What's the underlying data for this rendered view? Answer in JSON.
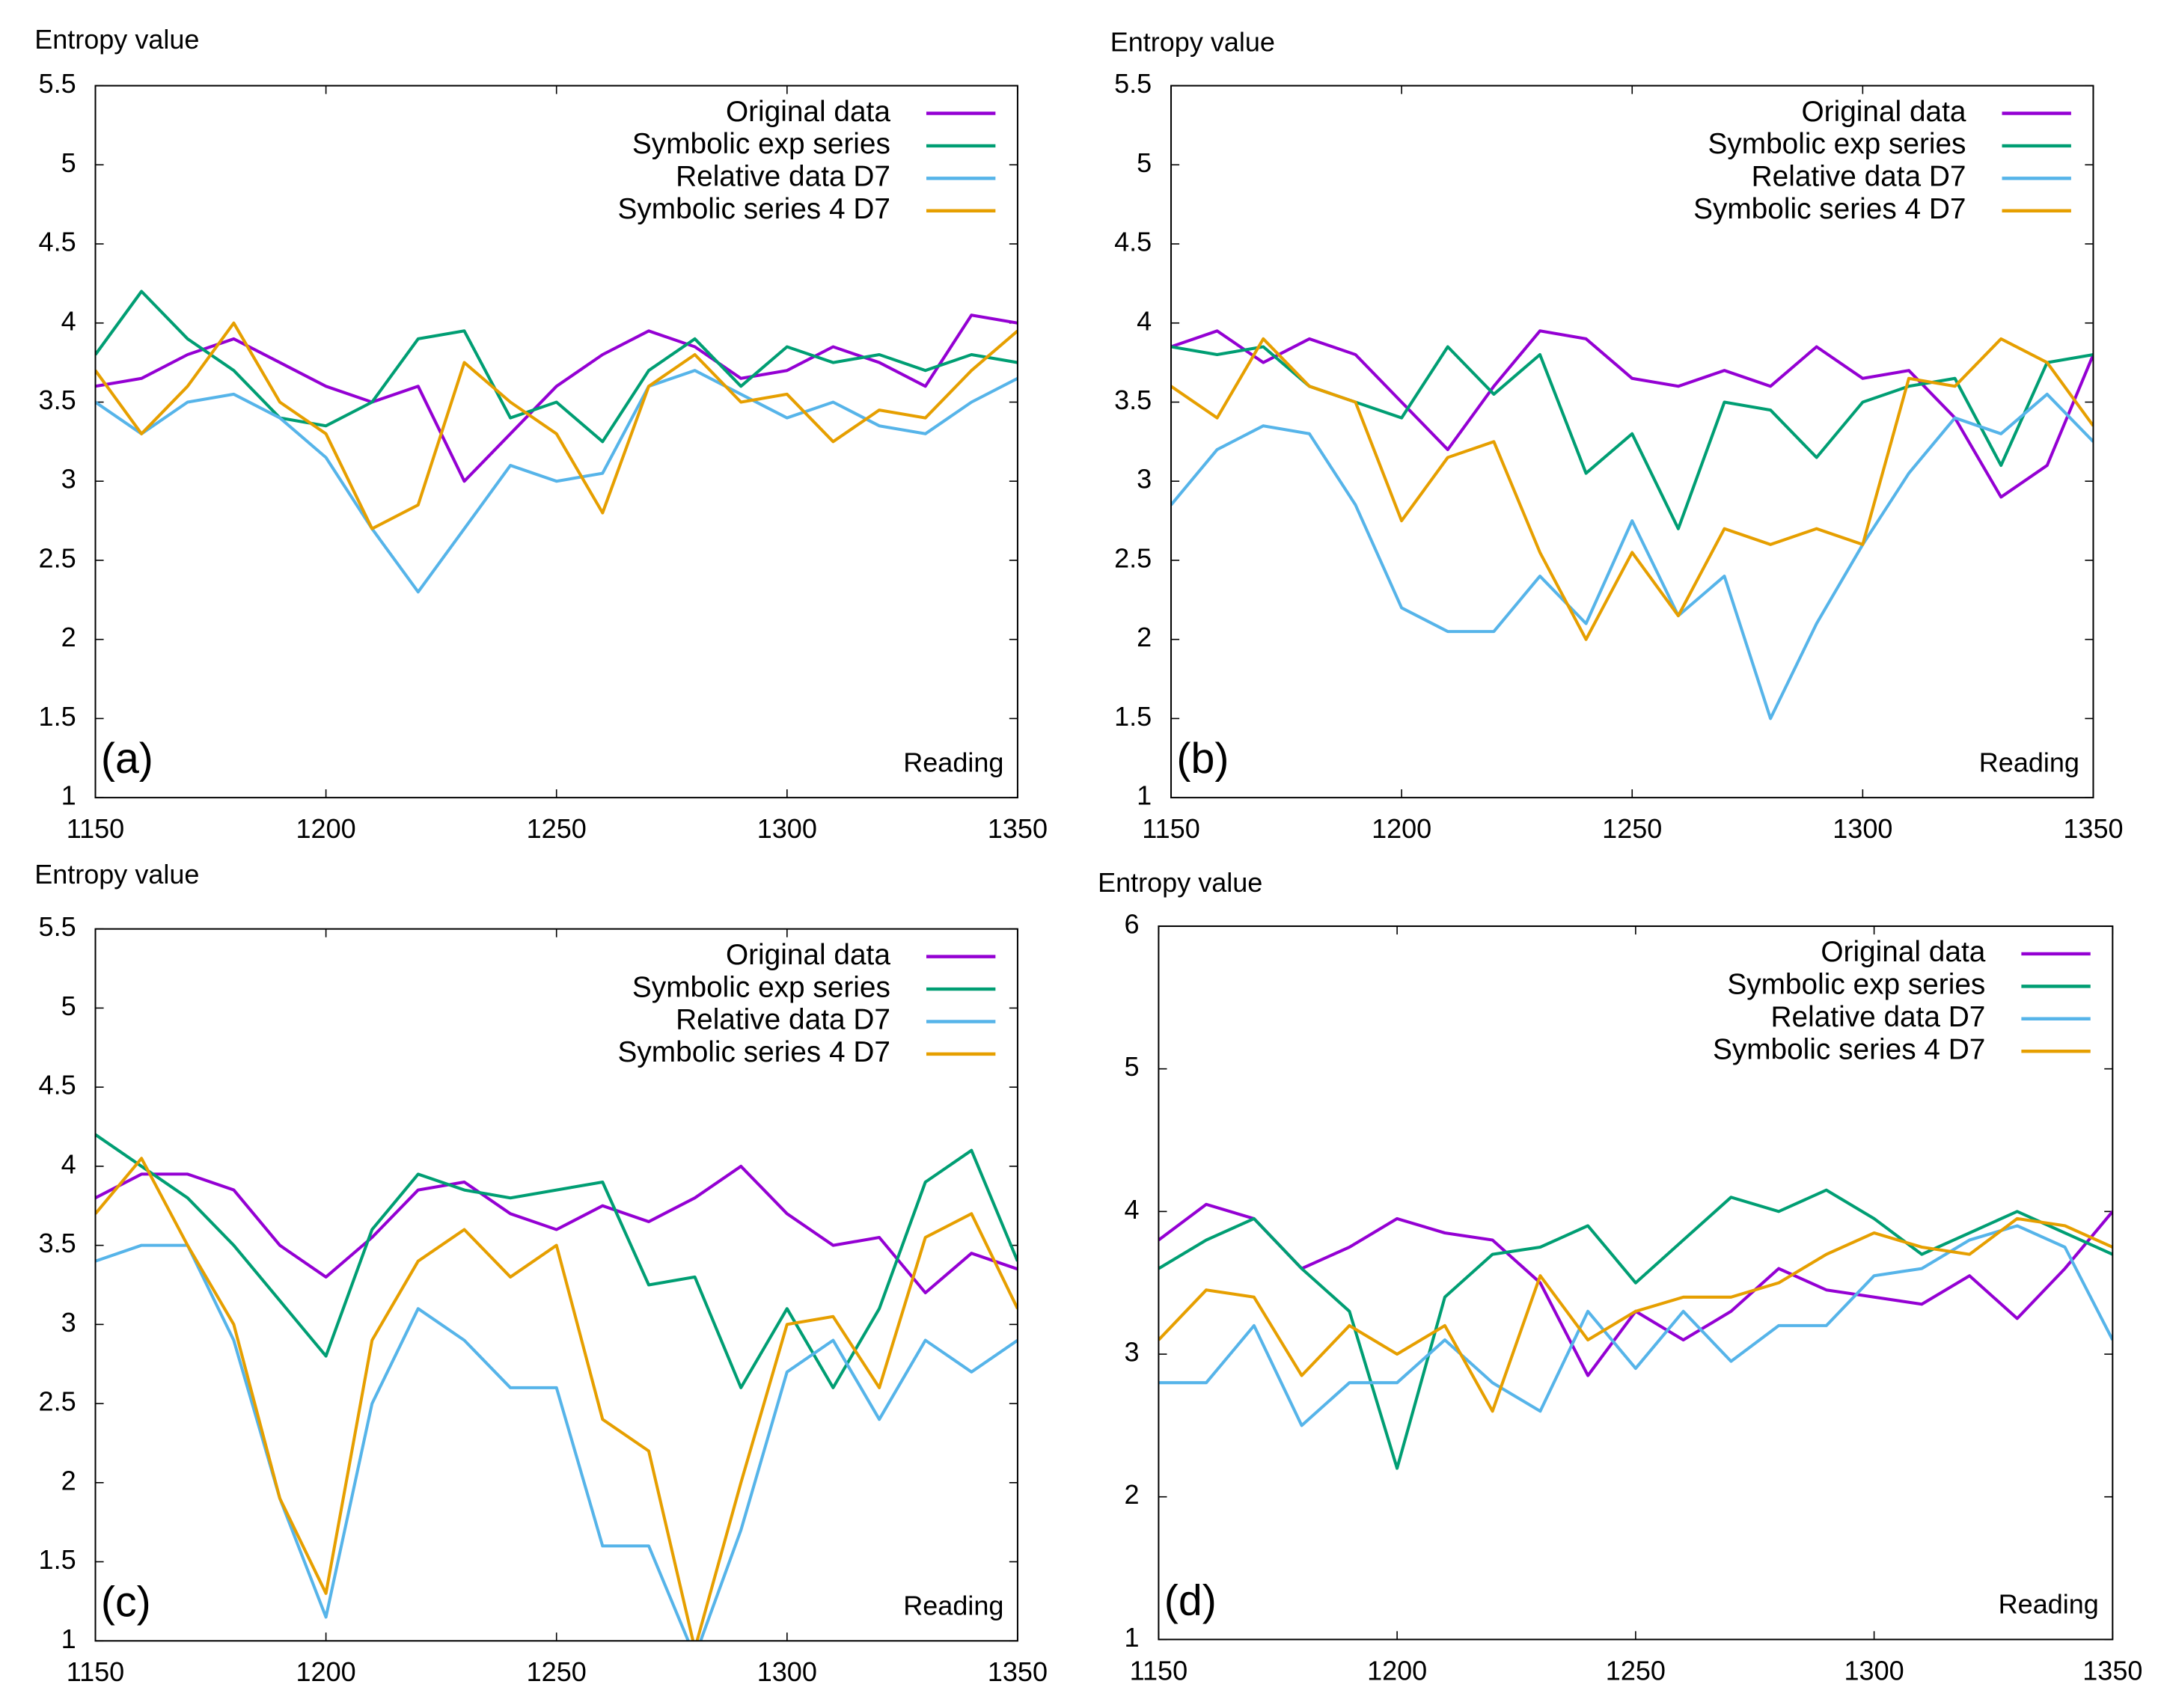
{
  "chart_data": [
    {
      "type": "line",
      "panel_label": "(a)",
      "ylabel": "Entropy value",
      "xlabel": "Reading",
      "xlim": [
        1150,
        1350
      ],
      "ylim": [
        1,
        5.5
      ],
      "xticks": [
        1150,
        1200,
        1250,
        1300,
        1350
      ],
      "yticks": [
        1,
        1.5,
        2,
        2.5,
        3,
        3.5,
        4,
        4.5,
        5,
        5.5
      ],
      "ytick_labels": [
        "1",
        "1.5",
        "2",
        "2.5",
        "3",
        "3.5",
        "4",
        "4.5",
        "5",
        "5.5"
      ],
      "legend_position": "top-right",
      "x": [
        1150,
        1160,
        1170,
        1180,
        1190,
        1200,
        1210,
        1220,
        1230,
        1240,
        1250,
        1260,
        1270,
        1280,
        1290,
        1300,
        1310,
        1320,
        1330,
        1340,
        1350
      ],
      "series": [
        {
          "name": "Original data",
          "color": "#9400d3",
          "values": [
            3.6,
            3.65,
            3.8,
            3.9,
            3.75,
            3.6,
            3.5,
            3.6,
            3.0,
            3.3,
            3.6,
            3.8,
            3.95,
            3.85,
            3.65,
            3.7,
            3.85,
            3.75,
            3.6,
            4.05,
            4.0
          ]
        },
        {
          "name": "Symbolic exp series",
          "color": "#009e73",
          "values": [
            3.8,
            4.2,
            3.9,
            3.7,
            3.4,
            3.35,
            3.5,
            3.9,
            3.95,
            3.4,
            3.5,
            3.25,
            3.7,
            3.9,
            3.6,
            3.85,
            3.75,
            3.8,
            3.7,
            3.8,
            3.75
          ]
        },
        {
          "name": "Relative data D7",
          "color": "#56b4e9",
          "values": [
            3.5,
            3.3,
            3.5,
            3.55,
            3.4,
            3.15,
            2.7,
            2.3,
            2.7,
            3.1,
            3.0,
            3.05,
            3.6,
            3.7,
            3.55,
            3.4,
            3.5,
            3.35,
            3.3,
            3.5,
            3.65
          ]
        },
        {
          "name": "Symbolic series 4 D7",
          "color": "#e69f00",
          "values": [
            3.7,
            3.3,
            3.6,
            4.0,
            3.5,
            3.3,
            2.7,
            2.85,
            3.75,
            3.5,
            3.3,
            2.8,
            3.6,
            3.8,
            3.5,
            3.55,
            3.25,
            3.45,
            3.4,
            3.7,
            3.95
          ]
        }
      ]
    },
    {
      "type": "line",
      "panel_label": "(b)",
      "ylabel": "Entropy value",
      "xlabel": "Reading",
      "xlim": [
        1150,
        1350
      ],
      "ylim": [
        1,
        5.5
      ],
      "xticks": [
        1150,
        1200,
        1250,
        1300,
        1350
      ],
      "yticks": [
        1,
        1.5,
        2,
        2.5,
        3,
        3.5,
        4,
        4.5,
        5,
        5.5
      ],
      "ytick_labels": [
        "1",
        "1.5",
        "2",
        "2.5",
        "3",
        "3.5",
        "4",
        "4.5",
        "5",
        "5.5"
      ],
      "legend_position": "top-right",
      "x": [
        1150,
        1160,
        1170,
        1180,
        1190,
        1200,
        1210,
        1220,
        1230,
        1240,
        1250,
        1260,
        1270,
        1280,
        1290,
        1300,
        1310,
        1320,
        1330,
        1340,
        1350
      ],
      "series": [
        {
          "name": "Original data",
          "color": "#9400d3",
          "values": [
            3.85,
            3.95,
            3.75,
            3.9,
            3.8,
            3.5,
            3.2,
            3.6,
            3.95,
            3.9,
            3.65,
            3.6,
            3.7,
            3.6,
            3.85,
            3.65,
            3.7,
            3.4,
            2.9,
            3.1,
            3.8
          ]
        },
        {
          "name": "Symbolic exp series",
          "color": "#009e73",
          "values": [
            3.85,
            3.8,
            3.85,
            3.6,
            3.5,
            3.4,
            3.85,
            3.55,
            3.8,
            3.05,
            3.3,
            2.7,
            3.5,
            3.45,
            3.15,
            3.5,
            3.6,
            3.65,
            3.1,
            3.75,
            3.8
          ]
        },
        {
          "name": "Relative data D7",
          "color": "#56b4e9",
          "values": [
            2.85,
            3.2,
            3.35,
            3.3,
            2.85,
            2.2,
            2.05,
            2.05,
            2.4,
            2.1,
            2.75,
            2.15,
            2.4,
            1.5,
            2.1,
            2.6,
            3.05,
            3.4,
            3.3,
            3.55,
            3.25
          ]
        },
        {
          "name": "Symbolic series 4 D7",
          "color": "#e69f00",
          "values": [
            3.6,
            3.4,
            3.9,
            3.6,
            3.5,
            2.75,
            3.15,
            3.25,
            2.55,
            2.0,
            2.55,
            2.15,
            2.7,
            2.6,
            2.7,
            2.6,
            3.65,
            3.6,
            3.9,
            3.75,
            3.35
          ]
        }
      ]
    },
    {
      "type": "line",
      "panel_label": "(c)",
      "ylabel": "Entropy value",
      "xlabel": "Reading",
      "xlim": [
        1150,
        1350
      ],
      "ylim": [
        1,
        5.5
      ],
      "xticks": [
        1150,
        1200,
        1250,
        1300,
        1350
      ],
      "yticks": [
        1,
        1.5,
        2,
        2.5,
        3,
        3.5,
        4,
        4.5,
        5,
        5.5
      ],
      "ytick_labels": [
        "1",
        "1.5",
        "2",
        "2.5",
        "3",
        "3.5",
        "4",
        "4.5",
        "5",
        "5.5"
      ],
      "legend_position": "top-right",
      "x": [
        1150,
        1160,
        1170,
        1180,
        1190,
        1200,
        1210,
        1220,
        1230,
        1240,
        1250,
        1260,
        1270,
        1280,
        1290,
        1300,
        1310,
        1320,
        1330,
        1340,
        1350
      ],
      "series": [
        {
          "name": "Original data",
          "color": "#9400d3",
          "values": [
            3.8,
            3.95,
            3.95,
            3.85,
            3.5,
            3.3,
            3.55,
            3.85,
            3.9,
            3.7,
            3.6,
            3.75,
            3.65,
            3.8,
            4.0,
            3.7,
            3.5,
            3.55,
            3.2,
            3.45,
            3.35
          ]
        },
        {
          "name": "Symbolic exp series",
          "color": "#009e73",
          "values": [
            4.2,
            4.0,
            3.8,
            3.5,
            3.15,
            2.8,
            3.6,
            3.95,
            3.85,
            3.8,
            3.85,
            3.9,
            3.25,
            3.3,
            2.6,
            3.1,
            2.6,
            3.1,
            3.9,
            4.1,
            3.4
          ]
        },
        {
          "name": "Relative data D7",
          "color": "#56b4e9",
          "values": [
            3.4,
            3.5,
            3.5,
            2.9,
            1.9,
            1.15,
            2.5,
            3.1,
            2.9,
            2.6,
            2.6,
            1.6,
            1.6,
            0.9,
            1.7,
            2.7,
            2.9,
            2.4,
            2.9,
            2.7,
            2.9
          ]
        },
        {
          "name": "Symbolic series 4 D7",
          "color": "#e69f00",
          "values": [
            3.7,
            4.05,
            3.5,
            3.0,
            1.9,
            1.3,
            2.9,
            3.4,
            3.6,
            3.3,
            3.5,
            2.4,
            2.2,
            0.95,
            2.0,
            3.0,
            3.05,
            2.6,
            3.55,
            3.7,
            3.1
          ]
        }
      ]
    },
    {
      "type": "line",
      "panel_label": "(d)",
      "ylabel": "Entropy value",
      "xlabel": "Reading",
      "xlim": [
        1150,
        1350
      ],
      "ylim": [
        1,
        6
      ],
      "xticks": [
        1150,
        1200,
        1250,
        1300,
        1350
      ],
      "yticks": [
        1,
        2,
        3,
        4,
        5,
        6
      ],
      "ytick_labels": [
        "1",
        "2",
        "3",
        "4",
        "5",
        "6"
      ],
      "legend_position": "top-right",
      "x": [
        1150,
        1160,
        1170,
        1180,
        1190,
        1200,
        1210,
        1220,
        1230,
        1240,
        1250,
        1260,
        1270,
        1280,
        1290,
        1300,
        1310,
        1320,
        1330,
        1340,
        1350
      ],
      "series": [
        {
          "name": "Original data",
          "color": "#9400d3",
          "values": [
            3.8,
            4.05,
            3.95,
            3.6,
            3.75,
            3.95,
            3.85,
            3.8,
            3.5,
            2.85,
            3.3,
            3.1,
            3.3,
            3.6,
            3.45,
            3.4,
            3.35,
            3.55,
            3.25,
            3.6,
            4.0
          ]
        },
        {
          "name": "Symbolic exp series",
          "color": "#009e73",
          "values": [
            3.6,
            3.8,
            3.95,
            3.6,
            3.3,
            2.2,
            3.4,
            3.7,
            3.75,
            3.9,
            3.5,
            3.8,
            4.1,
            4.0,
            4.15,
            3.95,
            3.7,
            3.85,
            4.0,
            3.85,
            3.7
          ]
        },
        {
          "name": "Relative data D7",
          "color": "#56b4e9",
          "values": [
            2.8,
            2.8,
            3.2,
            2.5,
            2.8,
            2.8,
            3.1,
            2.8,
            2.6,
            3.3,
            2.9,
            3.3,
            2.95,
            3.2,
            3.2,
            3.55,
            3.6,
            3.8,
            3.9,
            3.75,
            3.1
          ]
        },
        {
          "name": "Symbolic series 4 D7",
          "color": "#e69f00",
          "values": [
            3.1,
            3.45,
            3.4,
            2.85,
            3.2,
            3.0,
            3.2,
            2.6,
            3.55,
            3.1,
            3.3,
            3.4,
            3.4,
            3.5,
            3.7,
            3.85,
            3.75,
            3.7,
            3.95,
            3.9,
            3.75
          ]
        }
      ]
    }
  ]
}
